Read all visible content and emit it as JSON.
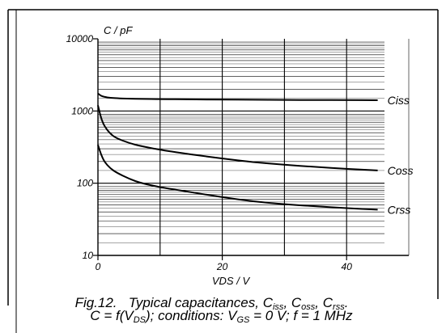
{
  "chart_data": {
    "type": "line",
    "ylabel": "C / pF",
    "xlabel": "VDS / V",
    "x_ticks": [
      0,
      20,
      40
    ],
    "y_ticks": [
      10,
      100,
      1000,
      10000
    ],
    "y_tick_labels": [
      "10",
      "100",
      "1000",
      "10000"
    ],
    "x_tick_labels": [
      "0",
      "20",
      "40"
    ],
    "xlim": [
      0,
      50
    ],
    "ylim": [
      10,
      10000
    ],
    "y_scale": "log",
    "grid": true,
    "series": [
      {
        "name": "Ciss",
        "x": [
          0,
          0.5,
          1,
          2,
          3,
          5,
          7,
          10,
          15,
          20,
          25,
          30,
          35,
          40,
          45
        ],
        "values": [
          1750,
          1620,
          1570,
          1520,
          1500,
          1480,
          1470,
          1460,
          1450,
          1440,
          1430,
          1425,
          1420,
          1415,
          1410
        ]
      },
      {
        "name": "Coss",
        "x": [
          0,
          0.5,
          1,
          2,
          3,
          5,
          7,
          10,
          15,
          20,
          25,
          30,
          35,
          40,
          45
        ],
        "values": [
          1200,
          800,
          620,
          480,
          420,
          360,
          325,
          290,
          250,
          220,
          195,
          180,
          168,
          158,
          150
        ]
      },
      {
        "name": "Crss",
        "x": [
          0,
          0.5,
          1,
          2,
          3,
          5,
          7,
          10,
          15,
          20,
          25,
          30,
          35,
          40,
          45
        ],
        "values": [
          340,
          250,
          200,
          160,
          140,
          115,
          100,
          88,
          75,
          64,
          56,
          51,
          48,
          45,
          43
        ]
      }
    ]
  },
  "caption": {
    "fig": "Fig.12.",
    "l1_a": "Typical capacitances, C",
    "sub_iss": "iss",
    "sep1": ", C",
    "sub_oss": "oss",
    "sep2": ", C",
    "sub_rss": "rss",
    "end1": ".",
    "l2_a": "C = f(V",
    "sub_ds": "DS",
    "l2_b": "); conditions: V",
    "sub_gs": "GS",
    "l2_c": " = 0 V; f = 1 MHz"
  }
}
